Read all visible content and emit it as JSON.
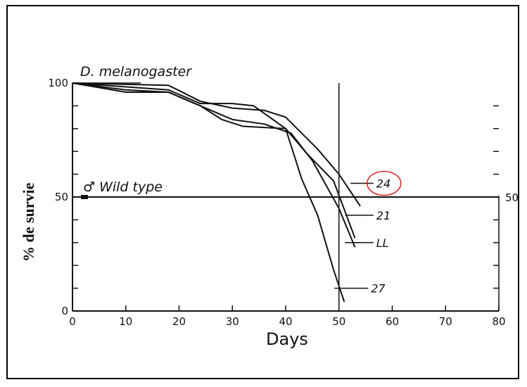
{
  "chart_data": {
    "type": "line",
    "title": "D. melanogaster",
    "xlabel": "Days",
    "ylabel": "% de survie",
    "xlim": [
      0,
      80
    ],
    "ylim": [
      0,
      100
    ],
    "x_ticks": [
      "0",
      "10",
      "20",
      "30",
      "40",
      "50",
      "60",
      "70",
      "80"
    ],
    "y_ticks": [
      "0",
      "50",
      "100"
    ],
    "right_tick_label": "50",
    "reference_line_label": "♂ Wild type",
    "reference_y": 50,
    "vertical_line_x": 50,
    "highlight_color": "#e02020",
    "highlighted_series": "24",
    "series": [
      {
        "name": "24",
        "x": [
          0,
          18,
          24,
          30,
          36,
          40,
          46,
          50,
          54
        ],
        "y": [
          100,
          99,
          92,
          89,
          88,
          85,
          71,
          60,
          46
        ]
      },
      {
        "name": "21",
        "x": [
          0,
          18,
          24,
          30,
          34,
          40,
          44,
          49,
          53
        ],
        "y": [
          100,
          97,
          91,
          91,
          90,
          80,
          69,
          57,
          32
        ]
      },
      {
        "name": "LL",
        "x": [
          0,
          10,
          18,
          24,
          30,
          36,
          41,
          45,
          50,
          53
        ],
        "y": [
          100,
          96,
          96,
          90,
          84,
          82,
          78,
          66,
          45,
          28
        ]
      },
      {
        "name": "27",
        "x": [
          0,
          10,
          18,
          24,
          28,
          32,
          40,
          43,
          46,
          49,
          51
        ],
        "y": [
          100,
          97,
          96,
          90,
          84,
          81,
          80,
          58,
          42,
          18,
          4
        ]
      }
    ],
    "series_label_pos": {
      "24": {
        "x": 57,
        "y": 56
      },
      "21": {
        "x": 57,
        "y": 42
      },
      "LL": {
        "x": 57,
        "y": 30
      },
      "27": {
        "x": 56,
        "y": 10
      }
    },
    "grid": false
  }
}
